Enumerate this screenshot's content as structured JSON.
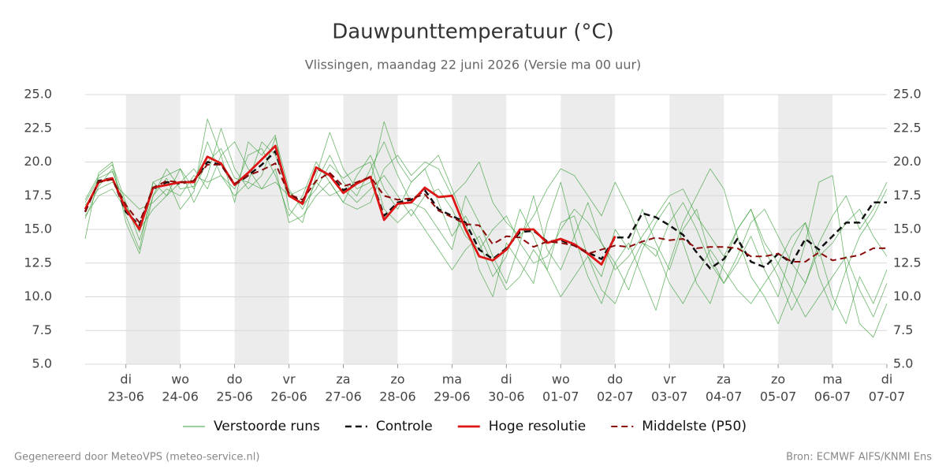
{
  "chart_data": {
    "type": "line",
    "title": "Dauwpunttemperatuur (°C)",
    "subtitle": "Vlissingen, maandag 22 juni 2026 (Versie ma 00 uur)",
    "footer_left": "Gegenereerd door MeteoVPS (meteo-service.nl)",
    "footer_right": "Bron: ECMWF AIFS/KNMI Ens",
    "shading": "alternate-days",
    "grid": true,
    "xlim": [
      -0.75,
      14
    ],
    "ylim": [
      5,
      25
    ],
    "yticks": [
      {
        "value": 5,
        "label": "5.0"
      },
      {
        "value": 7.5,
        "label": "7.5"
      },
      {
        "value": 10,
        "label": "10.0"
      },
      {
        "value": 12.5,
        "label": "12.5"
      },
      {
        "value": 15,
        "label": "15.0"
      },
      {
        "value": 17.5,
        "label": "17.5"
      },
      {
        "value": 20,
        "label": "20.0"
      },
      {
        "value": 22.5,
        "label": "22.5"
      },
      {
        "value": 25,
        "label": "25.0"
      }
    ],
    "xticks": [
      {
        "value": 0,
        "label": "di",
        "date": "23-06"
      },
      {
        "value": 1,
        "label": "wo",
        "date": "24-06"
      },
      {
        "value": 2,
        "label": "do",
        "date": "25-06"
      },
      {
        "value": 3,
        "label": "vr",
        "date": "26-06"
      },
      {
        "value": 4,
        "label": "za",
        "date": "27-06"
      },
      {
        "value": 5,
        "label": "zo",
        "date": "28-06"
      },
      {
        "value": 6,
        "label": "ma",
        "date": "29-06"
      },
      {
        "value": 7,
        "label": "di",
        "date": "30-06"
      },
      {
        "value": 8,
        "label": "wo",
        "date": "01-07"
      },
      {
        "value": 9,
        "label": "do",
        "date": "02-07"
      },
      {
        "value": 10,
        "label": "vr",
        "date": "03-07"
      },
      {
        "value": 11,
        "label": "za",
        "date": "04-07"
      },
      {
        "value": 12,
        "label": "zo",
        "date": "05-07"
      },
      {
        "value": 13,
        "label": "ma",
        "date": "06-07"
      },
      {
        "value": 14,
        "label": "di",
        "date": "07-07"
      }
    ],
    "x": [
      -0.75,
      -0.5,
      -0.25,
      0,
      0.25,
      0.5,
      0.75,
      1,
      1.25,
      1.5,
      1.75,
      2,
      2.25,
      2.5,
      2.75,
      3,
      3.25,
      3.5,
      3.75,
      4,
      4.25,
      4.5,
      4.75,
      5,
      5.25,
      5.5,
      5.75,
      6,
      6.25,
      6.5,
      6.75,
      7,
      7.25,
      7.5,
      7.75,
      8,
      8.25,
      8.5,
      8.75,
      9,
      9.25,
      9.5,
      9.75,
      10,
      10.25,
      10.5,
      10.75,
      11,
      11.25,
      11.5,
      11.75,
      12,
      12.25,
      12.5,
      12.75,
      13,
      13.25,
      13.5,
      13.75,
      14
    ],
    "series": [
      {
        "name": "Verstoorde runs",
        "color": "#3c9f3c",
        "dash": false,
        "width": 0.8,
        "members": [
          [
            17.2,
            19.0,
            19.8,
            17.0,
            14.2,
            17.5,
            19.5,
            18.0,
            18.2,
            21.5,
            19.0,
            18.0,
            20.5,
            21.0,
            19.0,
            16.0,
            17.5,
            20.0,
            18.5,
            17.0,
            19.0,
            20.5,
            18.0,
            16.5,
            18.5,
            19.5,
            17.0,
            14.5,
            16.0,
            14.0,
            11.5,
            13.0,
            16.5,
            14.5,
            12.0,
            15.5,
            16.0,
            13.0,
            11.5,
            15.0,
            13.5,
            16.5,
            14.0,
            12.0,
            15.0,
            16.5,
            13.0,
            11.0,
            12.5,
            14.5,
            12.0,
            10.0,
            13.5,
            15.5,
            11.5,
            9.0,
            12.0,
            14.5,
            16.0,
            18.0
          ],
          [
            15.8,
            18.2,
            19.5,
            16.0,
            13.5,
            18.5,
            17.5,
            19.5,
            17.0,
            19.0,
            22.5,
            19.5,
            18.0,
            19.0,
            21.8,
            18.0,
            16.5,
            18.5,
            20.5,
            18.5,
            17.5,
            19.5,
            21.5,
            19.0,
            17.0,
            16.5,
            15.0,
            13.5,
            17.5,
            15.5,
            13.0,
            11.0,
            14.0,
            17.5,
            13.5,
            12.0,
            14.5,
            17.0,
            14.0,
            12.5,
            10.5,
            13.5,
            15.5,
            17.0,
            14.0,
            11.0,
            9.5,
            12.5,
            15.0,
            16.5,
            13.5,
            11.5,
            9.0,
            11.0,
            13.5,
            10.0,
            8.0,
            11.5,
            9.5,
            12.0
          ],
          [
            16.8,
            18.0,
            18.5,
            17.5,
            16.5,
            17.0,
            18.0,
            17.5,
            19.0,
            18.5,
            19.0,
            17.5,
            18.5,
            18.0,
            18.5,
            17.5,
            18.0,
            18.5,
            17.5,
            18.0,
            17.0,
            18.0,
            19.0,
            17.5,
            16.0,
            17.5,
            18.0,
            16.5,
            14.5,
            13.5,
            15.0,
            16.0,
            14.0,
            12.5,
            13.0,
            15.0,
            16.5,
            15.5,
            14.0,
            12.0,
            13.0,
            14.5,
            16.0,
            17.5,
            18.0,
            16.0,
            14.5,
            13.0,
            15.0,
            16.5,
            14.0,
            12.5,
            14.5,
            15.5,
            13.0,
            14.0,
            15.5,
            16.5,
            14.5,
            13.0
          ],
          [
            14.3,
            19.2,
            20.0,
            15.5,
            13.2,
            17.5,
            18.8,
            16.5,
            17.8,
            23.2,
            20.5,
            17.0,
            21.5,
            20.5,
            22.0,
            16.5,
            15.5,
            19.0,
            22.2,
            19.5,
            18.0,
            18.5,
            23.0,
            20.0,
            18.5,
            19.5,
            20.5,
            18.0,
            15.5,
            12.0,
            10.0,
            14.0,
            12.5,
            11.0,
            15.5,
            18.5,
            14.5,
            11.5,
            9.5,
            12.5,
            14.0,
            11.5,
            9.0,
            12.5,
            15.5,
            17.5,
            19.5,
            18.0,
            14.5,
            11.5,
            10.0,
            8.0,
            10.5,
            14.0,
            18.5,
            19.0,
            12.0,
            8.0,
            7.0,
            9.5
          ],
          [
            16.0,
            17.5,
            18.0,
            16.5,
            15.0,
            16.5,
            17.5,
            18.5,
            19.5,
            18.0,
            20.5,
            21.5,
            19.5,
            18.0,
            19.5,
            15.5,
            16.0,
            17.5,
            18.5,
            17.0,
            16.5,
            17.0,
            19.5,
            20.5,
            19.0,
            20.0,
            19.5,
            17.5,
            18.5,
            20.0,
            17.0,
            15.5,
            14.5,
            16.0,
            18.0,
            19.5,
            19.0,
            17.5,
            16.0,
            18.5,
            16.5,
            14.0,
            13.0,
            15.5,
            17.0,
            15.0,
            12.5,
            11.0,
            13.0,
            15.5,
            16.5,
            14.5,
            12.5,
            11.0,
            14.0,
            16.0,
            17.5,
            15.0,
            16.5,
            18.5
          ],
          [
            17.0,
            18.8,
            19.3,
            16.8,
            14.8,
            18.5,
            19.0,
            19.5,
            18.0,
            20.0,
            21.0,
            18.8,
            18.5,
            21.5,
            20.5,
            17.8,
            16.8,
            18.0,
            19.8,
            18.8,
            19.5,
            20.0,
            16.5,
            15.5,
            16.5,
            15.0,
            13.5,
            12.0,
            13.5,
            14.5,
            12.5,
            10.5,
            11.5,
            13.5,
            12.0,
            10.0,
            11.5,
            13.0,
            10.5,
            9.5,
            12.0,
            14.0,
            13.5,
            11.0,
            9.5,
            11.5,
            13.5,
            12.0,
            10.5,
            9.5,
            11.0,
            12.5,
            10.5,
            8.5,
            10.0,
            11.5,
            13.0,
            10.5,
            8.5,
            11.0
          ]
        ]
      },
      {
        "name": "Controle",
        "color": "#111111",
        "dash": true,
        "width": 2.5,
        "values": [
          16.3,
          18.6,
          18.8,
          16.3,
          15.3,
          18.0,
          18.5,
          18.4,
          18.6,
          20.0,
          19.8,
          18.3,
          19.0,
          19.8,
          20.8,
          17.6,
          17.0,
          19.5,
          19.1,
          17.9,
          18.4,
          18.9,
          16.0,
          17.0,
          17.2,
          17.9,
          16.5,
          16.0,
          15.5,
          13.5,
          12.8,
          13.6,
          14.8,
          14.9,
          14.1,
          14.2,
          13.8,
          13.3,
          12.8,
          14.4,
          14.4,
          16.2,
          15.9,
          15.3,
          14.6,
          13.3,
          12.1,
          12.8,
          14.3,
          12.6,
          12.2,
          13.2,
          12.5,
          14.3,
          13.5,
          14.5,
          15.5,
          15.5,
          17.0,
          17.0
        ]
      },
      {
        "name": "Hoge resolutie",
        "color": "#dd1515",
        "dash": false,
        "width": 2.8,
        "values": [
          16.5,
          18.5,
          18.8,
          16.5,
          15.0,
          18.1,
          18.3,
          18.5,
          18.5,
          20.4,
          19.9,
          18.3,
          19.2,
          20.2,
          21.2,
          17.5,
          16.9,
          19.6,
          19.0,
          17.7,
          18.4,
          18.9,
          15.7,
          16.9,
          17.0,
          18.1,
          17.4,
          17.5,
          15.0,
          13.0,
          12.7,
          13.5,
          15.0,
          15.0,
          14.0,
          14.3,
          13.9,
          13.2,
          12.4,
          14.5,
          null,
          null,
          null,
          null,
          null,
          null,
          null,
          null,
          null,
          null,
          null,
          null,
          null,
          null,
          null,
          null,
          null,
          null,
          null,
          null
        ]
      },
      {
        "name": "Middelste (P50)",
        "color": "#8b0a0a",
        "dash": true,
        "width": 2,
        "values": [
          16.3,
          18.5,
          18.7,
          16.8,
          15.5,
          18.1,
          18.6,
          18.5,
          18.6,
          19.8,
          19.8,
          18.4,
          19.0,
          19.4,
          19.9,
          17.6,
          17.2,
          18.6,
          19.2,
          18.2,
          18.5,
          18.9,
          17.5,
          17.2,
          17.3,
          17.6,
          16.4,
          15.9,
          15.4,
          15.3,
          13.9,
          14.5,
          14.4,
          13.7,
          14.1,
          14.0,
          13.8,
          13.2,
          13.5,
          13.8,
          13.7,
          14.1,
          14.4,
          14.2,
          14.3,
          13.6,
          13.7,
          13.7,
          13.6,
          13.0,
          13.0,
          13.2,
          12.6,
          12.6,
          13.3,
          12.7,
          12.9,
          13.1,
          13.6,
          13.6
        ]
      }
    ]
  }
}
